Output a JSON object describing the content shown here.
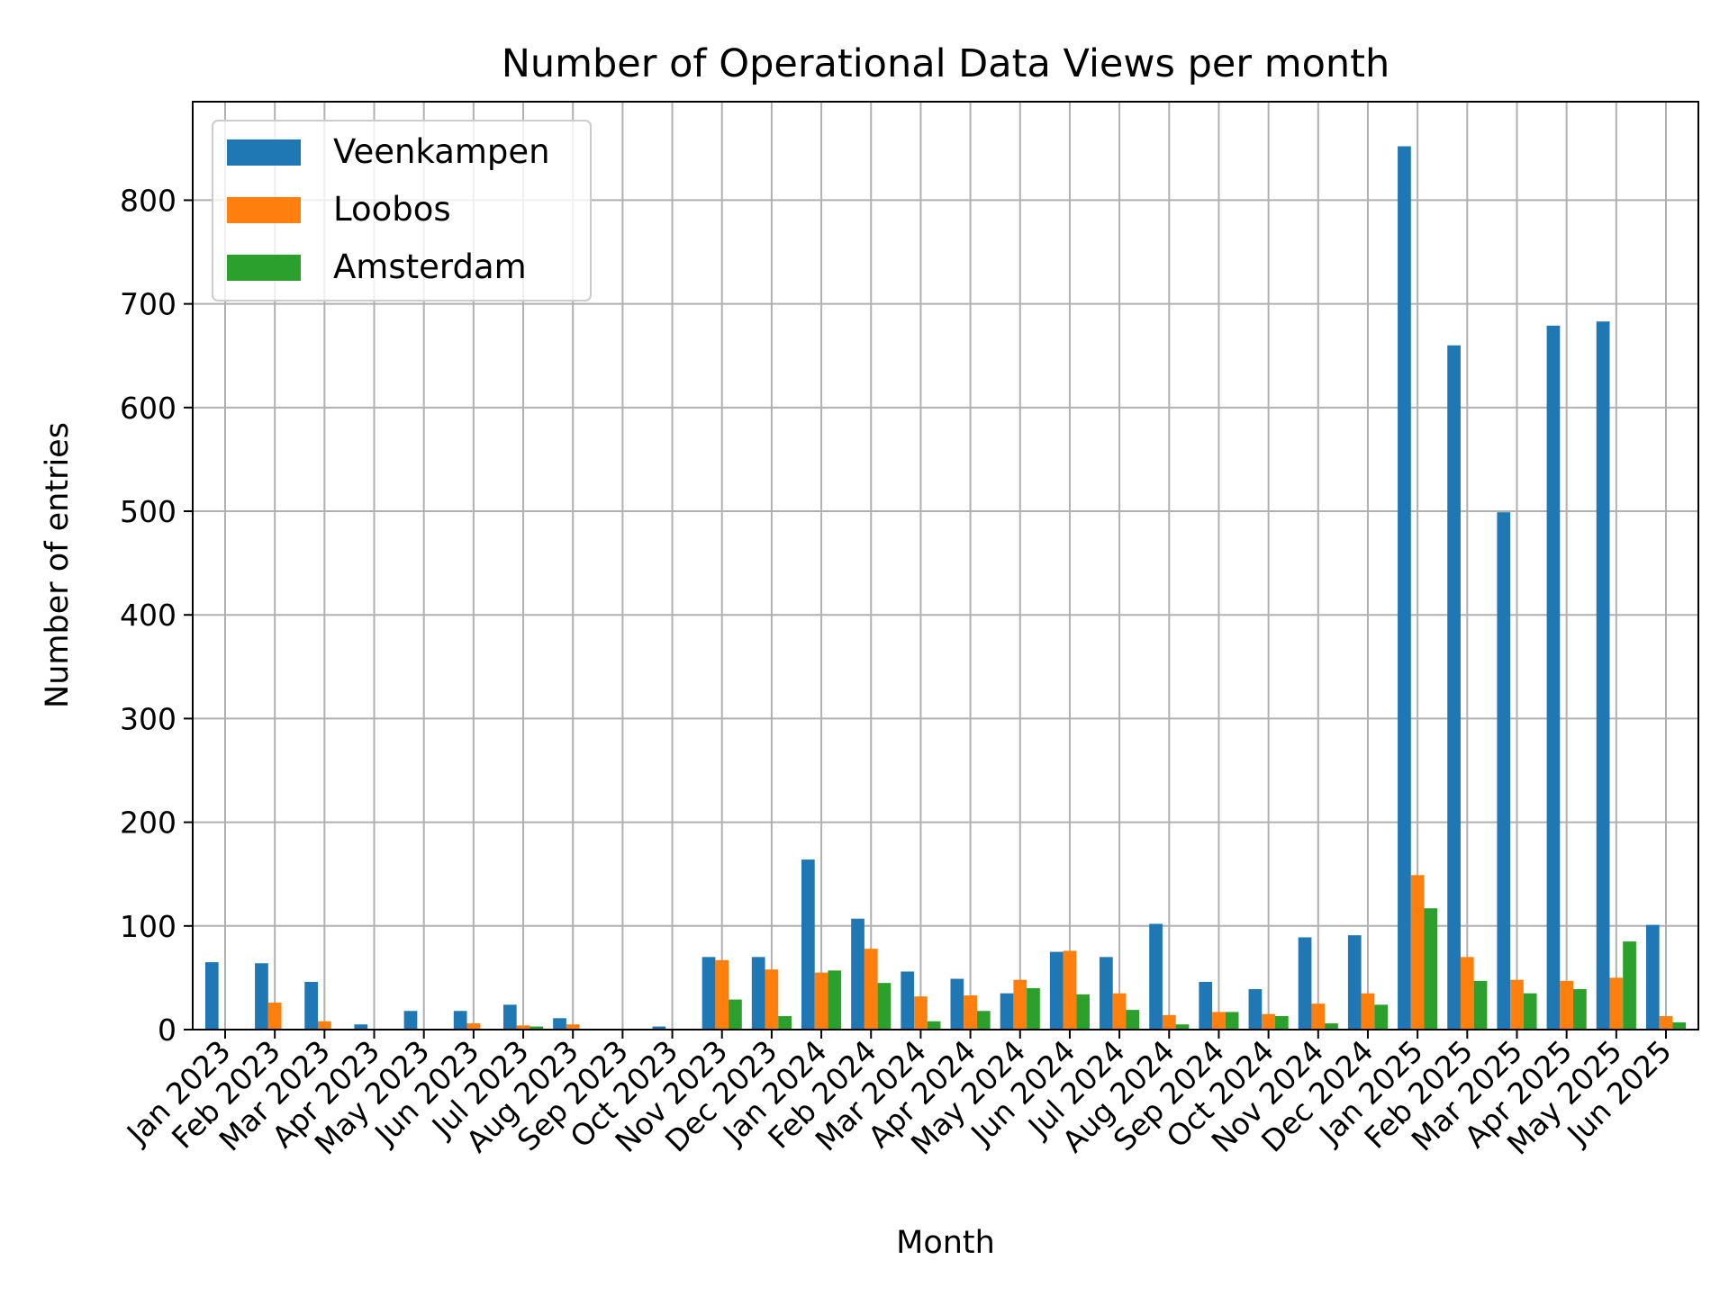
{
  "chart_data": {
    "type": "bar",
    "title": "Number of Operational Data Views per month",
    "xlabel": "Month",
    "ylabel": "Number of entries",
    "ylim": [
      0,
      895
    ],
    "yticks": [
      0,
      100,
      200,
      300,
      400,
      500,
      600,
      700,
      800
    ],
    "grid": true,
    "legend_position": "top-left",
    "categories": [
      "Jan 2023",
      "Feb 2023",
      "Mar 2023",
      "Apr 2023",
      "May 2023",
      "Jun 2023",
      "Jul 2023",
      "Aug 2023",
      "Sep 2023",
      "Oct 2023",
      "Nov 2023",
      "Dec 2023",
      "Jan 2024",
      "Feb 2024",
      "Mar 2024",
      "Apr 2024",
      "May 2024",
      "Jun 2024",
      "Jul 2024",
      "Aug 2024",
      "Sep 2024",
      "Oct 2024",
      "Nov 2024",
      "Dec 2024",
      "Jan 2025",
      "Feb 2025",
      "Mar 2025",
      "Apr 2025",
      "May 2025",
      "Jun 2025"
    ],
    "series": [
      {
        "name": "Veenkampen",
        "color": "#1f77b4",
        "values": [
          65,
          64,
          46,
          5,
          18,
          18,
          24,
          11,
          0,
          3,
          70,
          70,
          164,
          107,
          56,
          49,
          35,
          75,
          70,
          102,
          46,
          39,
          89,
          91,
          852,
          660,
          499,
          679,
          683,
          101
        ]
      },
      {
        "name": "Loobos",
        "color": "#ff7f0e",
        "values": [
          0,
          26,
          8,
          0,
          0,
          6,
          4,
          5,
          0,
          0,
          67,
          58,
          55,
          78,
          32,
          33,
          48,
          76,
          35,
          14,
          17,
          15,
          25,
          35,
          149,
          70,
          48,
          47,
          50,
          13
        ]
      },
      {
        "name": "Amsterdam",
        "color": "#2ca02c",
        "values": [
          0,
          0,
          0,
          0,
          0,
          0,
          3,
          0,
          0,
          0,
          29,
          13,
          57,
          45,
          8,
          18,
          40,
          34,
          19,
          5,
          17,
          13,
          6,
          24,
          117,
          47,
          35,
          39,
          85,
          7
        ]
      }
    ]
  }
}
